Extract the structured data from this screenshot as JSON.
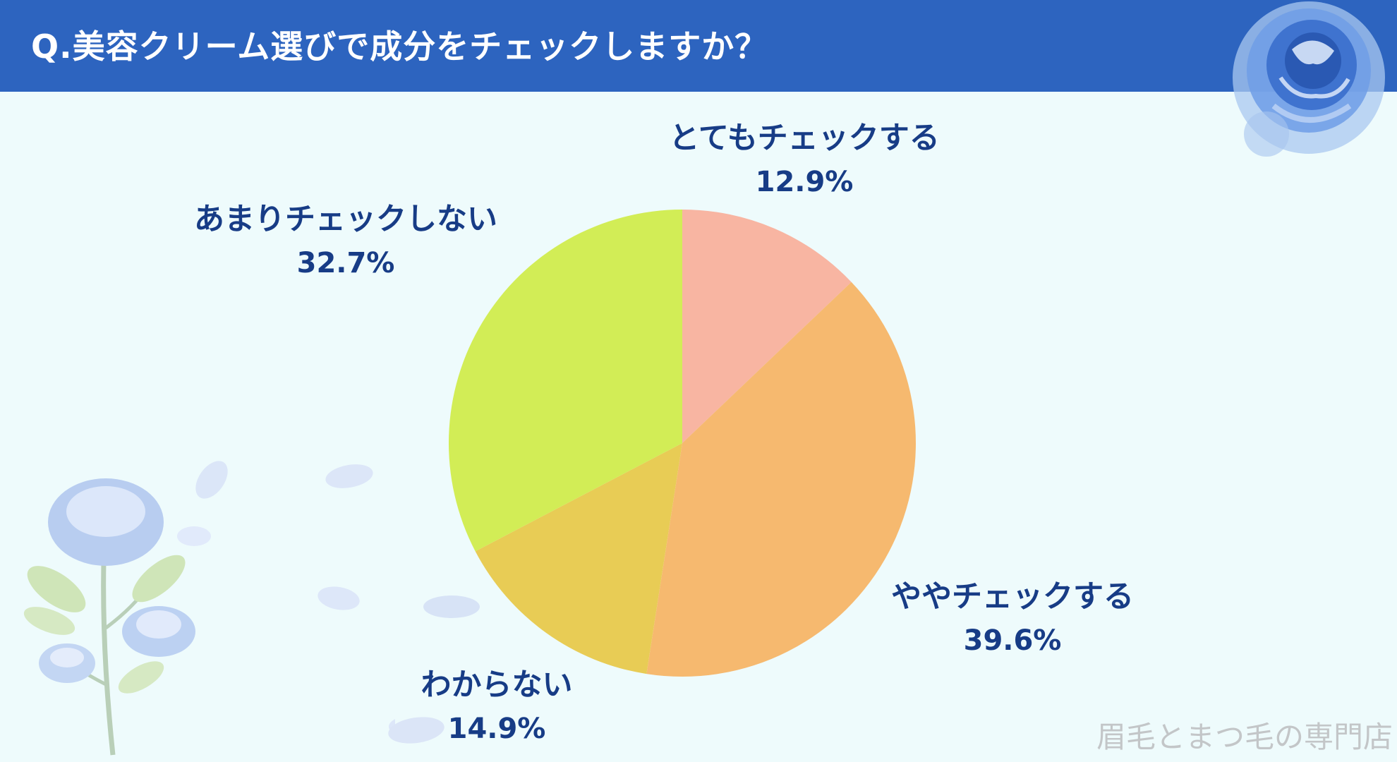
{
  "header": {
    "title": "Q.美容クリーム選びで成分をチェックしますか？"
  },
  "watermark": "眉毛とまつ毛の専門店",
  "colors": {
    "banner": "#2d64bf",
    "background": "#eefbfc",
    "label_text": "#173c86"
  },
  "chart_data": {
    "type": "pie",
    "title": "Q.美容クリーム選びで成分をチェックしますか？",
    "slices": [
      {
        "label": "とてもチェックする",
        "value": 12.9,
        "display": "12.9%",
        "color": "#f8b5a2"
      },
      {
        "label": "ややチェックする",
        "value": 39.6,
        "display": "39.6%",
        "color": "#f6b96f"
      },
      {
        "label": "わからない",
        "value": 14.9,
        "display": "14.9%",
        "color": "#e8cc55"
      },
      {
        "label": "あまりチェックしない",
        "value": 32.7,
        "display": "32.7%",
        "color": "#d2ed56"
      }
    ],
    "start_angle": "12 o'clock",
    "direction": "clockwise"
  }
}
